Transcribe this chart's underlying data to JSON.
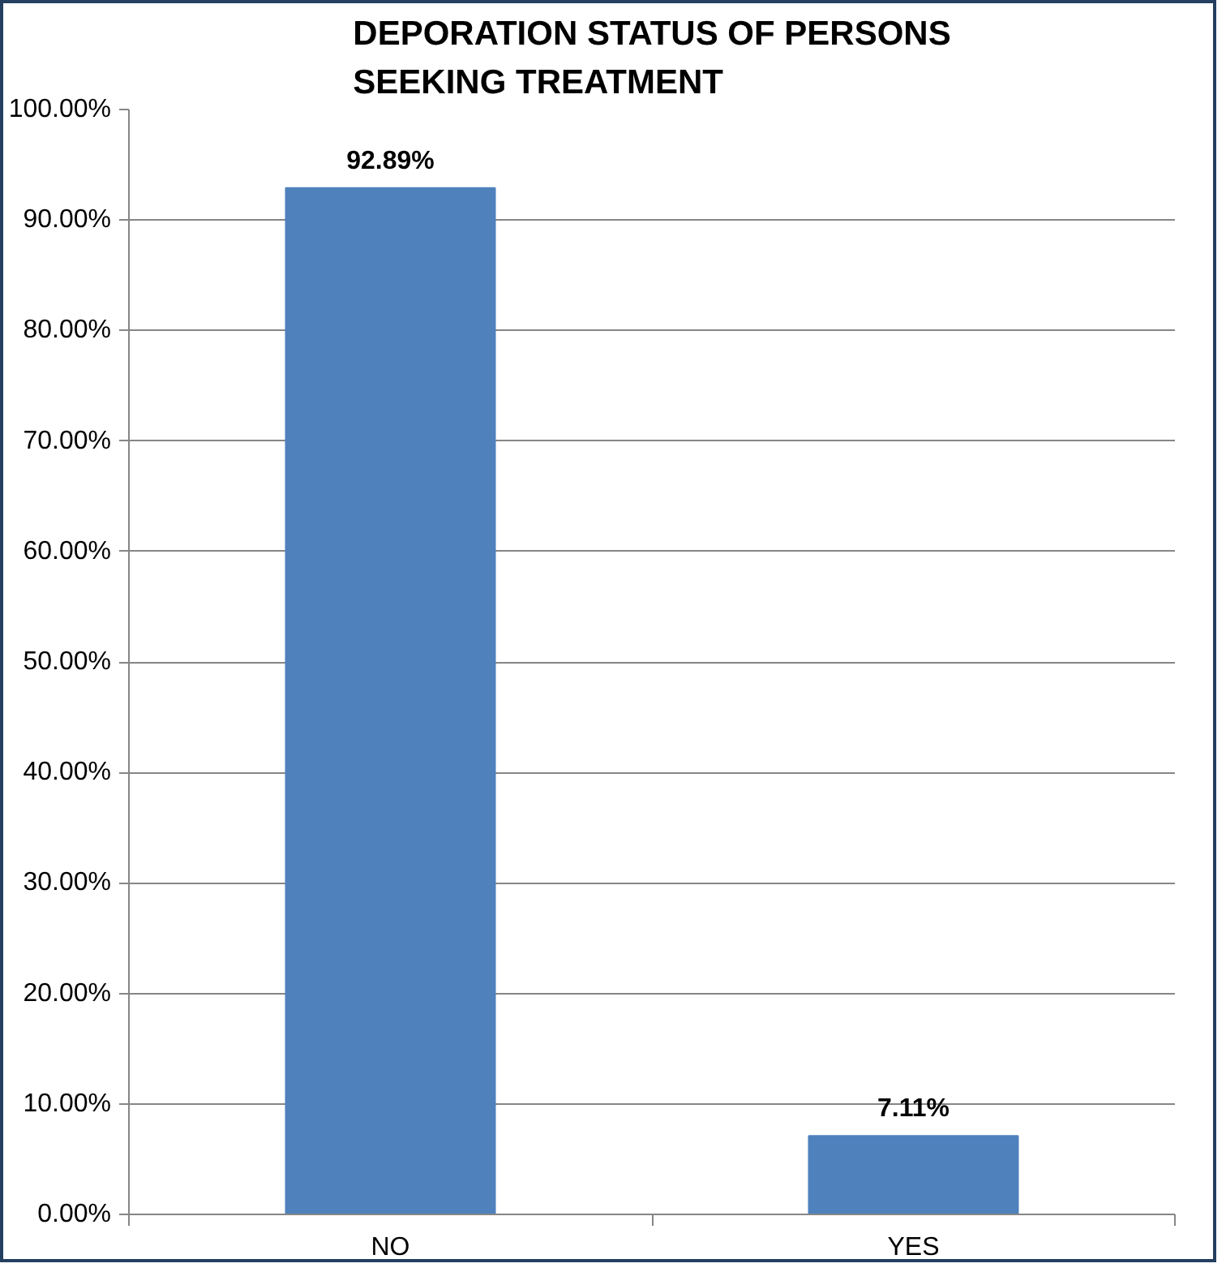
{
  "chart_data": {
    "type": "bar",
    "title": "DEPORATION STATUS OF PERSONS SEEKING TREATMENT",
    "categories": [
      "NO",
      "YES"
    ],
    "values": [
      92.89,
      7.11
    ],
    "value_labels": [
      "92.89%",
      "7.11%"
    ],
    "color": "#4f81bd",
    "ylim": [
      0,
      100
    ],
    "yticks": [
      {
        "value": 0,
        "label": "0.00%"
      },
      {
        "value": 10,
        "label": "10.00%"
      },
      {
        "value": 20,
        "label": "20.00%"
      },
      {
        "value": 30,
        "label": "30.00%"
      },
      {
        "value": 40,
        "label": "40.00%"
      },
      {
        "value": 50,
        "label": "50.00%"
      },
      {
        "value": 60,
        "label": "60.00%"
      },
      {
        "value": 70,
        "label": "70.00%"
      },
      {
        "value": 80,
        "label": "80.00%"
      },
      {
        "value": 90,
        "label": "90.00%"
      },
      {
        "value": 100,
        "label": "100.00%"
      }
    ],
    "grid": "y"
  }
}
